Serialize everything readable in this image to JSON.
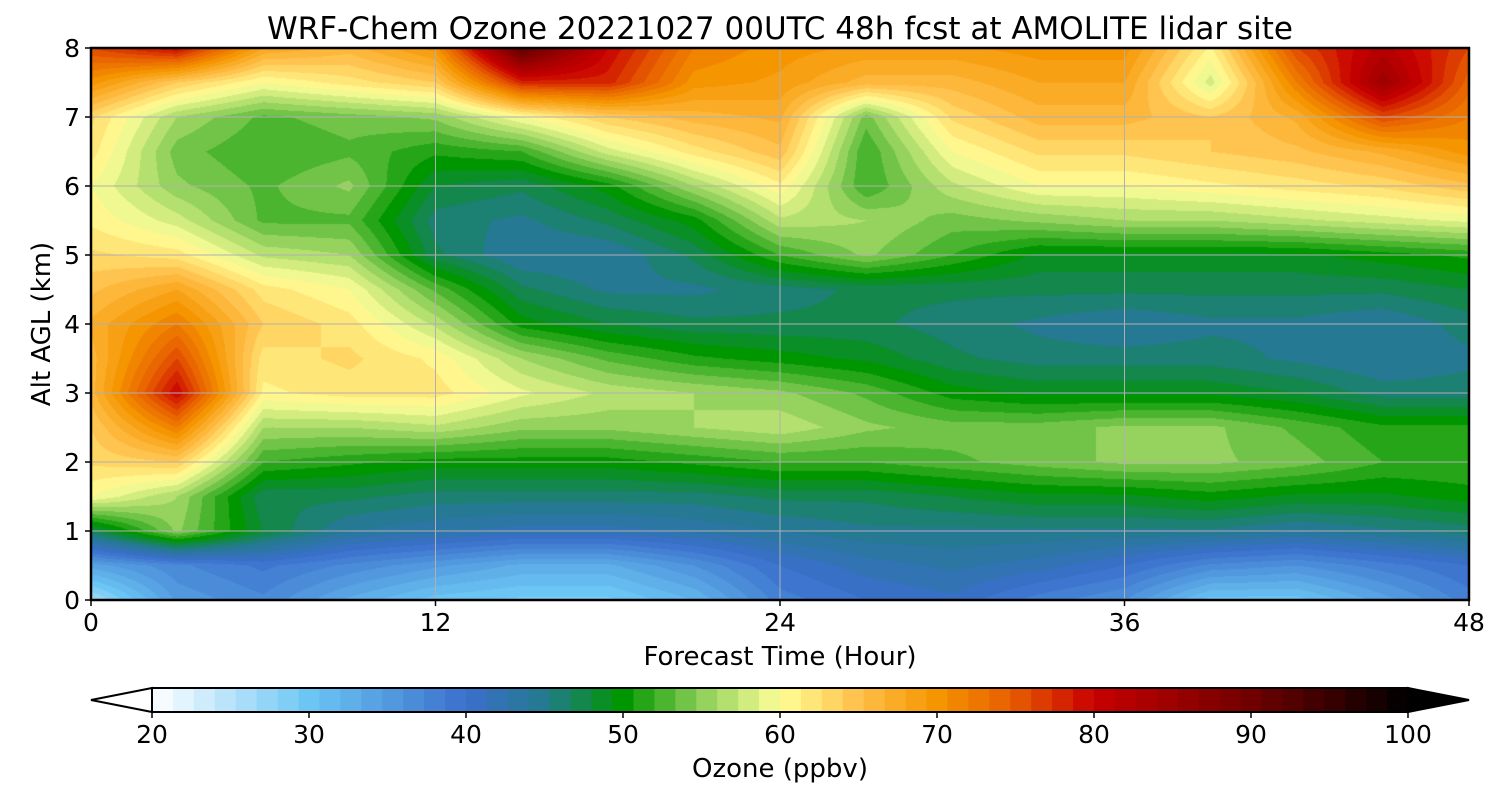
{
  "chart_data": {
    "type": "heatmap",
    "title": "WRF-Chem Ozone  20221027 00UTC 48h fcst at AMOLITE lidar site",
    "xlabel": "Forecast Time (Hour)",
    "ylabel": "Alt AGL (km)",
    "xlim": [
      0,
      48
    ],
    "ylim": [
      0,
      8
    ],
    "xticks": [
      0,
      12,
      24,
      36,
      48
    ],
    "yticks": [
      0,
      1,
      2,
      3,
      4,
      5,
      6,
      7,
      8
    ],
    "grid": true,
    "x": [
      0,
      3,
      6,
      9,
      12,
      15,
      18,
      21,
      24,
      27,
      30,
      33,
      36,
      39,
      42,
      45,
      48
    ],
    "y": [
      0,
      0.5,
      1,
      1.5,
      2,
      2.5,
      3,
      3.5,
      4,
      4.5,
      5,
      5.5,
      6,
      6.5,
      7,
      7.5,
      8
    ],
    "z": [
      [
        26,
        35,
        37,
        33,
        30,
        29,
        29,
        32,
        38,
        40,
        41,
        38,
        36,
        30,
        30,
        34,
        38
      ],
      [
        34,
        37,
        39,
        37,
        35,
        33,
        33,
        36,
        40,
        42,
        43,
        42,
        40,
        37,
        36,
        38,
        40
      ],
      [
        47,
        55,
        48,
        44,
        43,
        42,
        42,
        43,
        44,
        45,
        45,
        45,
        45,
        45,
        44,
        45,
        46
      ],
      [
        60,
        56,
        47,
        47,
        46,
        46,
        46,
        46,
        47,
        47,
        48,
        49,
        49,
        50,
        49,
        49,
        50
      ],
      [
        63,
        64,
        52,
        51,
        50,
        50,
        50,
        51,
        52,
        52,
        53,
        54,
        55,
        55,
        54,
        52,
        52
      ],
      [
        64,
        72,
        56,
        56,
        57,
        55,
        55,
        56,
        57,
        55,
        54,
        54,
        55,
        55,
        53,
        51,
        51
      ],
      [
        66,
        80,
        61,
        62,
        62,
        59,
        57,
        56,
        55,
        53,
        50,
        49,
        49,
        49,
        48,
        46,
        46
      ],
      [
        66,
        76,
        62,
        63,
        61,
        56,
        53,
        51,
        50,
        49,
        47,
        46,
        46,
        46,
        45,
        44,
        45
      ],
      [
        67,
        72,
        64,
        62,
        57,
        50,
        48,
        47,
        47,
        47,
        46,
        45,
        44,
        45,
        45,
        44,
        46
      ],
      [
        65,
        68,
        62,
        60,
        53,
        47,
        45,
        45,
        46,
        47,
        47,
        47,
        47,
        47,
        47,
        47,
        48
      ],
      [
        63,
        62,
        57,
        56,
        47,
        44,
        44,
        47,
        52,
        55,
        52,
        49,
        49,
        49,
        49,
        50,
        51
      ],
      [
        61,
        58,
        53,
        53,
        46,
        45,
        47,
        50,
        57,
        56,
        54,
        55,
        56,
        56,
        57,
        58,
        59
      ],
      [
        60,
        55,
        53,
        55,
        48,
        47,
        50,
        56,
        61,
        52,
        57,
        60,
        60,
        61,
        62,
        63,
        65
      ],
      [
        62,
        54,
        52,
        53,
        51,
        52,
        58,
        62,
        65,
        52,
        60,
        63,
        63,
        64,
        65,
        67,
        70
      ],
      [
        63,
        56,
        53,
        54,
        55,
        60,
        64,
        66,
        67,
        54,
        63,
        66,
        66,
        64,
        67,
        76,
        72
      ],
      [
        70,
        64,
        60,
        62,
        64,
        78,
        78,
        70,
        69,
        66,
        66,
        68,
        68,
        58,
        72,
        85,
        74
      ],
      [
        76,
        80,
        68,
        66,
        70,
        92,
        80,
        72,
        70,
        69,
        69,
        70,
        70,
        61,
        76,
        82,
        76
      ]
    ],
    "colorbar": {
      "label": "Ozone  (ppbv)",
      "ticks": [
        20,
        30,
        40,
        50,
        60,
        70,
        80,
        90,
        100
      ],
      "range": [
        20,
        100
      ],
      "extend": "both",
      "stops": [
        {
          "v": 20,
          "c": "#ffffff"
        },
        {
          "v": 30,
          "c": "#6cc6f4"
        },
        {
          "v": 40,
          "c": "#3a6fcc"
        },
        {
          "v": 45,
          "c": "#237a8e"
        },
        {
          "v": 50,
          "c": "#009600"
        },
        {
          "v": 55,
          "c": "#8fd05a"
        },
        {
          "v": 60,
          "c": "#ffff99"
        },
        {
          "v": 65,
          "c": "#ffc04a"
        },
        {
          "v": 70,
          "c": "#f59500"
        },
        {
          "v": 75,
          "c": "#e65a00"
        },
        {
          "v": 80,
          "c": "#c80000"
        },
        {
          "v": 90,
          "c": "#700000"
        },
        {
          "v": 100,
          "c": "#000000"
        }
      ]
    }
  }
}
